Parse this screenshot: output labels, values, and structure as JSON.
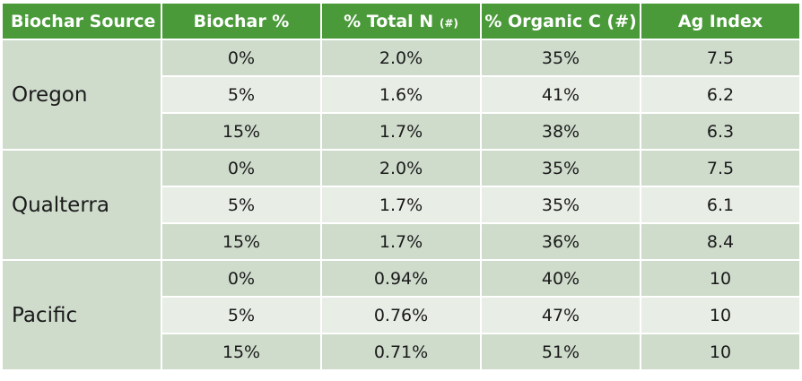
{
  "table": {
    "headers": {
      "source": "Biochar Source",
      "biochar_pct": "Biochar %",
      "total_n": "% Total N ",
      "total_n_note": "(#)",
      "organic_c": "% Organic C (#)",
      "ag_index": "Ag Index"
    },
    "groups": [
      {
        "name": "Oregon",
        "rows": [
          {
            "biochar_pct": "0%",
            "total_n": "2.0%",
            "organic_c": "35%",
            "ag_index": "7.5"
          },
          {
            "biochar_pct": "5%",
            "total_n": "1.6%",
            "organic_c": "41%",
            "ag_index": "6.2"
          },
          {
            "biochar_pct": "15%",
            "total_n": "1.7%",
            "organic_c": "38%",
            "ag_index": "6.3"
          }
        ]
      },
      {
        "name": "Qualterra",
        "rows": [
          {
            "biochar_pct": "0%",
            "total_n": "2.0%",
            "organic_c": "35%",
            "ag_index": "7.5"
          },
          {
            "biochar_pct": "5%",
            "total_n": "1.7%",
            "organic_c": "35%",
            "ag_index": "6.1"
          },
          {
            "biochar_pct": "15%",
            "total_n": "1.7%",
            "organic_c": "36%",
            "ag_index": "8.4"
          }
        ]
      },
      {
        "name": "Pacific",
        "rows": [
          {
            "biochar_pct": "0%",
            "total_n": "0.94%",
            "organic_c": "40%",
            "ag_index": "10"
          },
          {
            "biochar_pct": "5%",
            "total_n": "0.76%",
            "organic_c": "47%",
            "ag_index": "10"
          },
          {
            "biochar_pct": "15%",
            "total_n": "0.71%",
            "organic_c": "51%",
            "ag_index": "10"
          }
        ]
      }
    ]
  },
  "colors": {
    "header_bg": "#4a9a3a",
    "row_dark": "#cfdccc",
    "row_light": "#e8eee6"
  }
}
